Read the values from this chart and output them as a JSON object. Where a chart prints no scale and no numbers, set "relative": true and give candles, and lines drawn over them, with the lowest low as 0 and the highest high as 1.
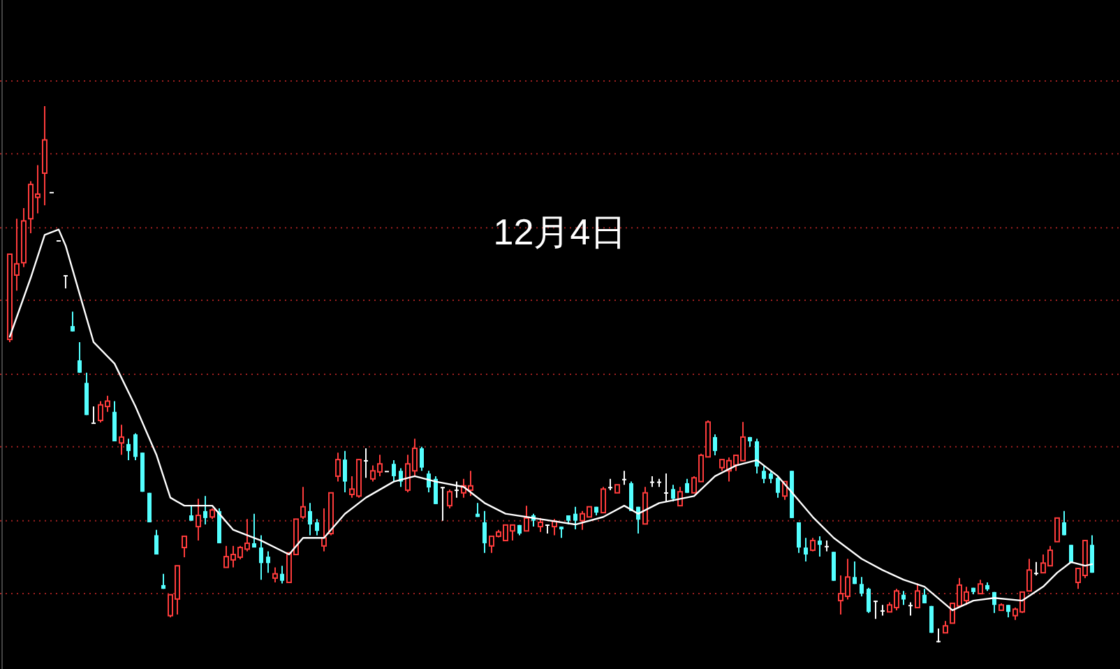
{
  "chart_data": {
    "type": "candlestick",
    "title": "12月4日",
    "relative": true,
    "ref_lines": [
      {
        "axis": "y",
        "value": 1.047,
        "color": "#a02020",
        "line_style": "dotted"
      },
      {
        "axis": "y",
        "value": 0.911,
        "color": "#a02020",
        "line_style": "dotted"
      },
      {
        "axis": "y",
        "value": 0.773,
        "color": "#a02020",
        "line_style": "dotted"
      },
      {
        "axis": "y",
        "value": 0.638,
        "color": "#a02020",
        "line_style": "dotted"
      },
      {
        "axis": "y",
        "value": 0.5,
        "color": "#a02020",
        "line_style": "dotted"
      },
      {
        "axis": "y",
        "value": 0.365,
        "color": "#a02020",
        "line_style": "dotted"
      },
      {
        "axis": "y",
        "value": 0.227,
        "color": "#a02020",
        "line_style": "dotted"
      },
      {
        "axis": "y",
        "value": 0.091,
        "color": "#a02020",
        "line_style": "dotted"
      }
    ],
    "categories": [
      null,
      null,
      null,
      null,
      null,
      null,
      null,
      null,
      null,
      null,
      null,
      null,
      null,
      null,
      null,
      null,
      null,
      null,
      null,
      null,
      null,
      null,
      null,
      null,
      null,
      null,
      null,
      null,
      null,
      null,
      null,
      null,
      null,
      null,
      null,
      null,
      null,
      null,
      null,
      null,
      null,
      null,
      null,
      null,
      null,
      null,
      null,
      null,
      null,
      null,
      null,
      null,
      null,
      null,
      null,
      null,
      null,
      null,
      null,
      null,
      null,
      null,
      null,
      null,
      null,
      null,
      null,
      null,
      null,
      null,
      null,
      null,
      null,
      null,
      null,
      null,
      null,
      null,
      null,
      null,
      null,
      null,
      null,
      null,
      null,
      null,
      null,
      null,
      null,
      null,
      null,
      null,
      null,
      null,
      null,
      null,
      null,
      null,
      null,
      null,
      null,
      null,
      null,
      null,
      null,
      null,
      null,
      null,
      null,
      null,
      null,
      null,
      null,
      null,
      null,
      null,
      null,
      null,
      null,
      null,
      null,
      null,
      null,
      null,
      null,
      null,
      null,
      null,
      null,
      null,
      null,
      null,
      null,
      null,
      null,
      null,
      null,
      null,
      null,
      null,
      null,
      null,
      null,
      null,
      null,
      null,
      null,
      null,
      null,
      null,
      null,
      null,
      null,
      null,
      null,
      null
    ],
    "ohlc": [
      [
        0.565,
        0.724,
        0.56,
        0.724
      ],
      [
        0.685,
        0.79,
        0.656,
        0.706
      ],
      [
        0.708,
        0.81,
        0.7,
        0.786
      ],
      [
        0.79,
        0.86,
        0.763,
        0.854
      ],
      [
        0.83,
        0.89,
        0.8,
        0.836
      ],
      [
        0.875,
        1.0,
        0.815,
        0.937
      ],
      [
        0.84,
        0.84,
        0.84,
        0.84
      ],
      [
        0.75,
        0.75,
        0.75,
        0.75
      ],
      [
        0.685,
        0.685,
        0.66,
        0.685
      ],
      [
        0.59,
        0.617,
        0.58,
        0.58
      ],
      [
        0.526,
        0.56,
        0.503,
        0.503
      ],
      [
        0.484,
        0.503,
        0.424,
        0.424
      ],
      [
        0.41,
        0.44,
        0.41,
        0.41
      ],
      [
        0.414,
        0.45,
        0.41,
        0.443
      ],
      [
        0.44,
        0.46,
        0.43,
        0.45
      ],
      [
        0.43,
        0.45,
        0.375,
        0.375
      ],
      [
        0.372,
        0.406,
        0.35,
        0.383
      ],
      [
        0.37,
        0.38,
        0.34,
        0.357
      ],
      [
        0.388,
        0.39,
        0.34,
        0.346
      ],
      [
        0.354,
        0.354,
        0.281,
        0.281
      ],
      [
        0.279,
        0.279,
        0.224,
        0.224
      ],
      [
        0.2,
        0.21,
        0.164,
        0.164
      ],
      [
        0.107,
        0.128,
        0.1,
        0.1
      ],
      [
        0.05,
        0.089,
        0.047,
        0.089
      ],
      [
        0.081,
        0.143,
        0.052,
        0.143
      ],
      [
        0.177,
        0.198,
        0.159,
        0.198
      ],
      [
        0.237,
        0.255,
        0.227,
        0.227
      ],
      [
        0.216,
        0.268,
        0.19,
        0.237
      ],
      [
        0.245,
        0.273,
        0.22,
        0.232
      ],
      [
        0.234,
        0.25,
        0.23,
        0.247
      ],
      [
        0.245,
        0.25,
        0.185,
        0.185
      ],
      [
        0.14,
        0.18,
        0.14,
        0.16
      ],
      [
        0.154,
        0.18,
        0.14,
        0.164
      ],
      [
        0.159,
        0.18,
        0.155,
        0.177
      ],
      [
        0.174,
        0.23,
        0.17,
        0.185
      ],
      [
        0.185,
        0.24,
        0.177,
        0.177
      ],
      [
        0.177,
        0.2,
        0.117,
        0.148
      ],
      [
        0.16,
        0.17,
        0.13,
        0.148
      ],
      [
        0.12,
        0.14,
        0.112,
        0.128
      ],
      [
        0.128,
        0.143,
        0.11,
        0.115
      ],
      [
        0.112,
        0.167,
        0.112,
        0.167
      ],
      [
        0.164,
        0.23,
        0.164,
        0.23
      ],
      [
        0.234,
        0.29,
        0.23,
        0.253
      ],
      [
        0.245,
        0.26,
        0.2,
        0.22
      ],
      [
        0.224,
        0.23,
        0.2,
        0.208
      ],
      [
        0.18,
        0.25,
        0.17,
        0.195
      ],
      [
        0.203,
        0.279,
        0.2,
        0.279
      ],
      [
        0.31,
        0.354,
        0.3,
        0.341
      ],
      [
        0.341,
        0.357,
        0.28,
        0.3
      ],
      [
        0.276,
        0.31,
        0.27,
        0.286
      ],
      [
        0.273,
        0.341,
        0.27,
        0.341
      ],
      [
        0.34,
        0.362,
        0.307,
        0.34
      ],
      [
        0.305,
        0.33,
        0.3,
        0.32
      ],
      [
        0.318,
        0.35,
        0.31,
        0.333
      ],
      [
        0.32,
        0.32,
        0.32,
        0.32
      ],
      [
        0.333,
        0.34,
        0.3,
        0.31
      ],
      [
        0.32,
        0.325,
        0.29,
        0.3
      ],
      [
        0.284,
        0.35,
        0.28,
        0.333
      ],
      [
        0.32,
        0.38,
        0.31,
        0.362
      ],
      [
        0.362,
        0.365,
        0.32,
        0.326
      ],
      [
        0.315,
        0.32,
        0.28,
        0.289
      ],
      [
        0.305,
        0.31,
        0.258,
        0.258
      ],
      [
        0.29,
        0.29,
        0.227,
        0.29
      ],
      [
        0.255,
        0.285,
        0.25,
        0.281
      ],
      [
        0.285,
        0.3,
        0.27,
        0.285
      ],
      [
        0.279,
        0.305,
        0.27,
        0.292
      ],
      [
        0.284,
        0.32,
        0.273,
        0.292
      ],
      [
        0.24,
        0.26,
        0.234,
        0.234
      ],
      [
        0.224,
        0.245,
        0.167,
        0.185
      ],
      [
        0.18,
        0.198,
        0.167,
        0.198
      ],
      [
        0.198,
        0.21,
        0.196,
        0.206
      ],
      [
        0.19,
        0.22,
        0.19,
        0.219
      ],
      [
        0.208,
        0.219,
        0.19,
        0.219
      ],
      [
        0.219,
        0.219,
        0.2,
        0.203
      ],
      [
        0.208,
        0.255,
        0.208,
        0.232
      ],
      [
        0.237,
        0.24,
        0.216,
        0.227
      ],
      [
        0.216,
        0.232,
        0.206,
        0.224
      ],
      [
        0.22,
        0.22,
        0.203,
        0.22
      ],
      [
        0.216,
        0.23,
        0.2,
        0.226
      ],
      [
        0.216,
        0.216,
        0.195,
        0.211
      ],
      [
        0.237,
        0.237,
        0.22,
        0.227
      ],
      [
        0.24,
        0.253,
        0.211,
        0.227
      ],
      [
        0.227,
        0.245,
        0.21,
        0.24
      ],
      [
        0.234,
        0.253,
        0.234,
        0.253
      ],
      [
        0.253,
        0.253,
        0.237,
        0.242
      ],
      [
        0.242,
        0.29,
        0.242,
        0.286
      ],
      [
        0.29,
        0.305,
        0.284,
        0.29
      ],
      [
        0.279,
        0.294,
        0.279,
        0.294
      ],
      [
        0.305,
        0.32,
        0.294,
        0.305
      ],
      [
        0.297,
        0.3,
        0.245,
        0.245
      ],
      [
        0.253,
        0.253,
        0.203,
        0.229
      ],
      [
        0.221,
        0.29,
        0.221,
        0.279
      ],
      [
        0.3,
        0.31,
        0.29,
        0.3
      ],
      [
        0.3,
        0.305,
        0.29,
        0.3
      ],
      [
        0.28,
        0.315,
        0.263,
        0.28
      ],
      [
        0.286,
        0.294,
        0.263,
        0.268
      ],
      [
        0.255,
        0.29,
        0.255,
        0.281
      ],
      [
        0.297,
        0.305,
        0.279,
        0.279
      ],
      [
        0.279,
        0.31,
        0.279,
        0.307
      ],
      [
        0.3,
        0.352,
        0.3,
        0.349
      ],
      [
        0.346,
        0.414,
        0.346,
        0.411
      ],
      [
        0.383,
        0.388,
        0.349,
        0.357
      ],
      [
        0.326,
        0.341,
        0.32,
        0.341
      ],
      [
        0.32,
        0.345,
        0.3,
        0.339
      ],
      [
        0.331,
        0.35,
        0.32,
        0.349
      ],
      [
        0.339,
        0.411,
        0.339,
        0.383
      ],
      [
        0.383,
        0.383,
        0.365,
        0.375
      ],
      [
        0.375,
        0.38,
        0.315,
        0.328
      ],
      [
        0.32,
        0.33,
        0.297,
        0.305
      ],
      [
        0.315,
        0.32,
        0.297,
        0.305
      ],
      [
        0.307,
        0.31,
        0.27,
        0.279
      ],
      [
        0.273,
        0.3,
        0.266,
        0.3
      ],
      [
        0.32,
        0.32,
        0.232,
        0.232
      ],
      [
        0.224,
        0.224,
        0.167,
        0.177
      ],
      [
        0.177,
        0.195,
        0.151,
        0.164
      ],
      [
        0.172,
        0.195,
        0.17,
        0.19
      ],
      [
        0.19,
        0.198,
        0.16,
        0.182
      ],
      [
        0.18,
        0.19,
        0.17,
        0.18
      ],
      [
        0.169,
        0.169,
        0.115,
        0.115
      ],
      [
        0.078,
        0.125,
        0.052,
        0.091
      ],
      [
        0.086,
        0.156,
        0.08,
        0.122
      ],
      [
        0.122,
        0.151,
        0.109,
        0.109
      ],
      [
        0.109,
        0.122,
        0.086,
        0.091
      ],
      [
        0.1,
        0.102,
        0.055,
        0.057
      ],
      [
        0.078,
        0.078,
        0.044,
        0.078
      ],
      [
        0.06,
        0.07,
        0.05,
        0.06
      ],
      [
        0.057,
        0.075,
        0.057,
        0.07
      ],
      [
        0.065,
        0.1,
        0.06,
        0.096
      ],
      [
        0.089,
        0.096,
        0.07,
        0.08
      ],
      [
        0.07,
        0.075,
        0.05,
        0.07
      ],
      [
        0.065,
        0.11,
        0.065,
        0.096
      ],
      [
        0.089,
        0.1,
        0.073,
        0.073
      ],
      [
        0.068,
        0.068,
        0.018,
        0.018
      ],
      [
        0.003,
        0.026,
        0.0,
        0.003
      ],
      [
        0.018,
        0.04,
        0.018,
        0.031
      ],
      [
        0.036,
        0.073,
        0.036,
        0.073
      ],
      [
        0.068,
        0.12,
        0.065,
        0.107
      ],
      [
        0.078,
        0.104,
        0.07,
        0.094
      ],
      [
        0.102,
        0.102,
        0.09,
        0.094
      ],
      [
        0.091,
        0.117,
        0.091,
        0.109
      ],
      [
        0.107,
        0.112,
        0.096,
        0.099
      ],
      [
        0.094,
        0.094,
        0.055,
        0.07
      ],
      [
        0.06,
        0.073,
        0.06,
        0.07
      ],
      [
        0.07,
        0.07,
        0.047,
        0.057
      ],
      [
        0.05,
        0.065,
        0.042,
        0.062
      ],
      [
        0.057,
        0.094,
        0.055,
        0.094
      ],
      [
        0.096,
        0.156,
        0.096,
        0.135
      ],
      [
        0.13,
        0.15,
        0.125,
        0.13
      ],
      [
        0.13,
        0.164,
        0.13,
        0.148
      ],
      [
        0.143,
        0.18,
        0.143,
        0.172
      ],
      [
        0.188,
        0.232,
        0.188,
        0.232
      ],
      [
        0.224,
        0.245,
        0.2,
        0.2
      ],
      [
        0.182,
        0.182,
        0.148,
        0.148
      ],
      [
        0.112,
        0.138,
        0.1,
        0.138
      ],
      [
        0.125,
        0.19,
        0.12,
        0.19
      ],
      [
        0.182,
        0.2,
        0.13,
        0.13
      ]
    ],
    "colors": [
      "#ff3c3c",
      "#ff3c3c",
      "#ff3c3c",
      "#ff3c3c",
      "#ff3c3c",
      "#ff3c3c",
      "#ffffff",
      "#ffffff",
      "#ffffff",
      "#54ffff",
      "#54ffff",
      "#54ffff",
      "#ffffff",
      "#ff3c3c",
      "#ff3c3c",
      "#54ffff",
      "#ff3c3c",
      "#54ffff",
      "#54ffff",
      "#54ffff",
      "#54ffff",
      "#54ffff",
      "#54ffff",
      "#ff3c3c",
      "#ff3c3c",
      "#ff3c3c",
      "#54ffff",
      "#ff3c3c",
      "#54ffff",
      "#ff3c3c",
      "#54ffff",
      "#ff3c3c",
      "#ff3c3c",
      "#ff3c3c",
      "#ff3c3c",
      "#54ffff",
      "#54ffff",
      "#54ffff",
      "#ff3c3c",
      "#54ffff",
      "#ff3c3c",
      "#ff3c3c",
      "#ff3c3c",
      "#54ffff",
      "#54ffff",
      "#ff3c3c",
      "#ff3c3c",
      "#ff3c3c",
      "#54ffff",
      "#ff3c3c",
      "#ff3c3c",
      "#ffffff",
      "#ff3c3c",
      "#ff3c3c",
      "#ffffff",
      "#54ffff",
      "#54ffff",
      "#ff3c3c",
      "#ff3c3c",
      "#54ffff",
      "#54ffff",
      "#54ffff",
      "#ffffff",
      "#ff3c3c",
      "#ffffff",
      "#ff3c3c",
      "#ff3c3c",
      "#54ffff",
      "#54ffff",
      "#ff3c3c",
      "#ff3c3c",
      "#ff3c3c",
      "#ff3c3c",
      "#54ffff",
      "#ff3c3c",
      "#54ffff",
      "#ff3c3c",
      "#ffffff",
      "#ff3c3c",
      "#54ffff",
      "#54ffff",
      "#54ffff",
      "#ff3c3c",
      "#ff3c3c",
      "#54ffff",
      "#ff3c3c",
      "#ffffff",
      "#ff3c3c",
      "#ffffff",
      "#54ffff",
      "#54ffff",
      "#ff3c3c",
      "#ffffff",
      "#ffffff",
      "#ffffff",
      "#54ffff",
      "#ff3c3c",
      "#54ffff",
      "#ff3c3c",
      "#ff3c3c",
      "#ff3c3c",
      "#54ffff",
      "#ff3c3c",
      "#ff3c3c",
      "#ff3c3c",
      "#ff3c3c",
      "#54ffff",
      "#54ffff",
      "#54ffff",
      "#54ffff",
      "#54ffff",
      "#ff3c3c",
      "#54ffff",
      "#54ffff",
      "#54ffff",
      "#ff3c3c",
      "#54ffff",
      "#ffffff",
      "#54ffff",
      "#ff3c3c",
      "#ff3c3c",
      "#54ffff",
      "#54ffff",
      "#54ffff",
      "#ffffff",
      "#ffffff",
      "#ff3c3c",
      "#ff3c3c",
      "#54ffff",
      "#ffffff",
      "#ff3c3c",
      "#54ffff",
      "#54ffff",
      "#ffffff",
      "#ff3c3c",
      "#ff3c3c",
      "#ff3c3c",
      "#ff3c3c",
      "#54ffff",
      "#ff3c3c",
      "#54ffff",
      "#54ffff",
      "#ff3c3c",
      "#54ffff",
      "#ff3c3c",
      "#ff3c3c",
      "#ff3c3c",
      "#ffffff",
      "#ff3c3c",
      "#ff3c3c",
      "#ff3c3c",
      "#54ffff",
      "#54ffff",
      "#ff3c3c",
      "#ff3c3c",
      "#54ffff"
    ],
    "series": [
      {
        "type": "line",
        "color": "#ffffff",
        "values": [
          0.57,
          null,
          null,
          0.68,
          null,
          0.76,
          null,
          0.77,
          0.74,
          null,
          0.65,
          null,
          0.56,
          null,
          null,
          0.52,
          null,
          null,
          0.44,
          null,
          null,
          0.35,
          null,
          0.27,
          null,
          0.255,
          null,
          null,
          null,
          0.255,
          null,
          null,
          0.21,
          null,
          null,
          null,
          0.19,
          null,
          null,
          null,
          0.164,
          null,
          0.195,
          null,
          null,
          0.195,
          null,
          null,
          0.24,
          null,
          null,
          0.27,
          null,
          null,
          null,
          0.3,
          null,
          null,
          0.31,
          null,
          null,
          0.3,
          null,
          null,
          null,
          0.29,
          null,
          null,
          0.26,
          null,
          null,
          0.24,
          null,
          null,
          null,
          null,
          0.23,
          null,
          null,
          null,
          null,
          0.22,
          null,
          null,
          null,
          0.234,
          null,
          null,
          0.255,
          null,
          0.24,
          null,
          null,
          0.26,
          null,
          null,
          null,
          null,
          0.273,
          null,
          null,
          0.31,
          null,
          null,
          0.33,
          null,
          null,
          0.34,
          null,
          null,
          0.31,
          null,
          0.28,
          null,
          null,
          0.234,
          null,
          null,
          0.195,
          null,
          null,
          null,
          0.156,
          null,
          null,
          0.135,
          null,
          null,
          0.117,
          null,
          null,
          0.104,
          null,
          null,
          null,
          0.06,
          null,
          null,
          0.078,
          null,
          null,
          0.083,
          null,
          null,
          null,
          0.078,
          null,
          null,
          0.104,
          null,
          0.13,
          null,
          0.15,
          null,
          0.143,
          0.146
        ]
      }
    ]
  }
}
